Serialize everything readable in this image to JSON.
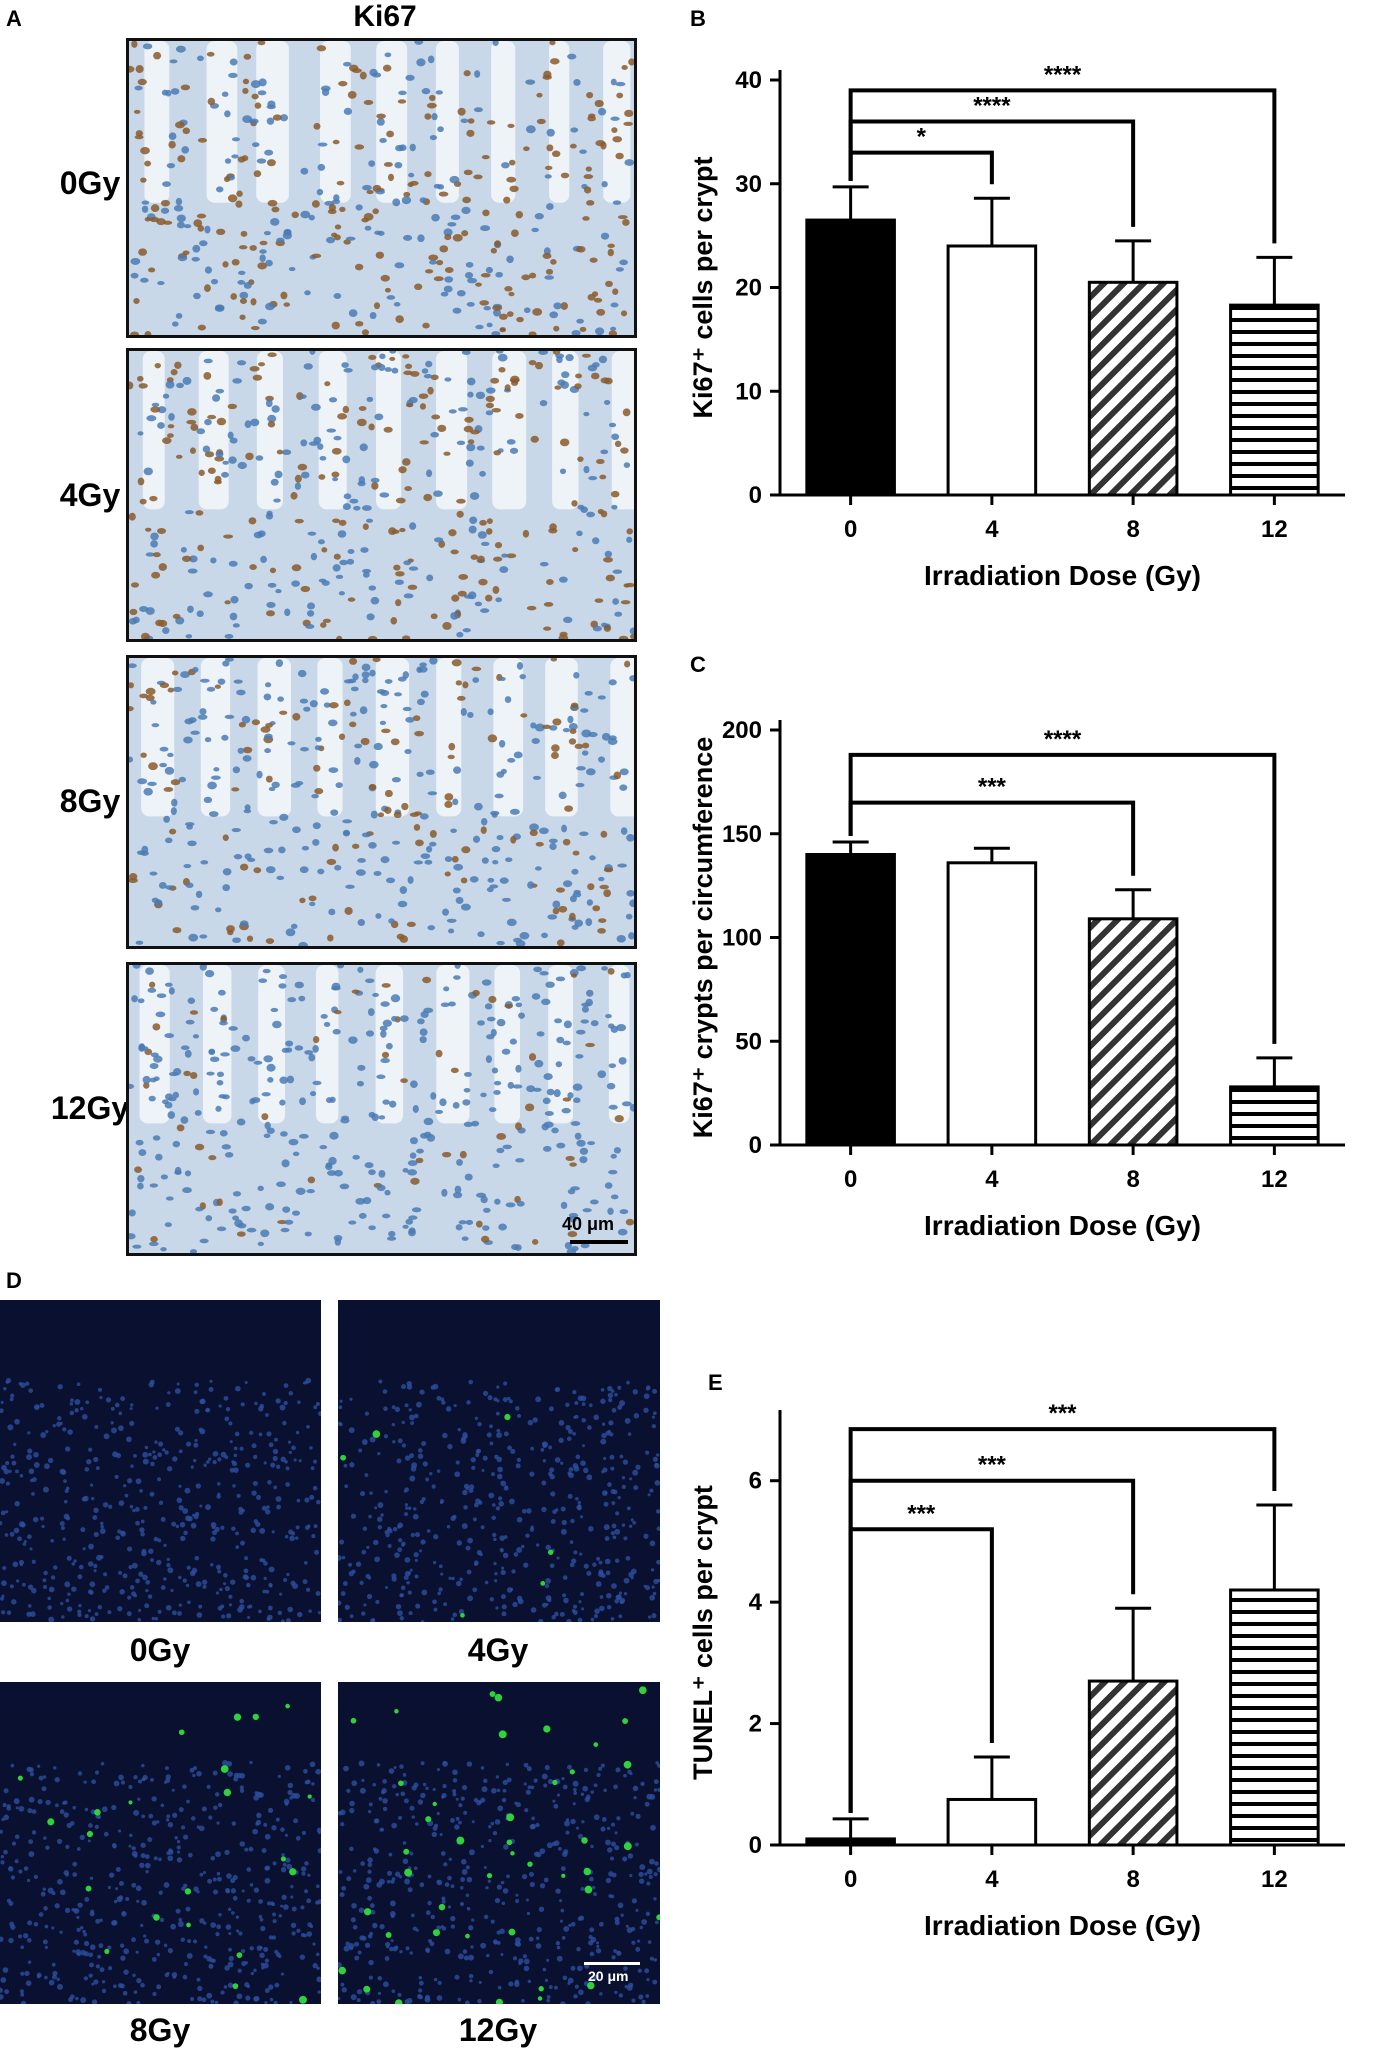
{
  "panels": {
    "a_letter": "A",
    "b_letter": "B",
    "c_letter": "C",
    "d_letter": "D",
    "e_letter": "E"
  },
  "panel_a": {
    "header": "Ki67",
    "rows": [
      "0Gy",
      "4Gy",
      "8Gy",
      "12Gy"
    ],
    "scale_label": "40 μm",
    "colors": {
      "background": "#c9d8e8",
      "nuclei": "#4a7bb5",
      "positive": "#8a5a2b"
    }
  },
  "panel_d": {
    "labels": [
      "0Gy",
      "4Gy",
      "8Gy",
      "12Gy"
    ],
    "scale_label": "20 μm",
    "colors": {
      "background": "#0a1030",
      "nuclei": "#2c4fa0",
      "positive": "#2fd23a"
    }
  },
  "chart_data": [
    {
      "panel": "B",
      "type": "bar",
      "categories": [
        "0",
        "4",
        "8",
        "12"
      ],
      "values": [
        26.5,
        24,
        20.5,
        18.3
      ],
      "errors": [
        3.2,
        4.6,
        4.0,
        4.6
      ],
      "patterns": [
        "solid",
        "white",
        "diagonal",
        "horizontal"
      ],
      "xlabel": "Irradiation Dose (Gy)",
      "ylabel": "Ki67⁺ cells per crypt",
      "ylim": [
        0,
        40
      ],
      "yticks": [
        0,
        10,
        20,
        30,
        40
      ],
      "significance": [
        {
          "from": 0,
          "to": 1,
          "label": "*",
          "y": 33
        },
        {
          "from": 0,
          "to": 2,
          "label": "****",
          "y": 36
        },
        {
          "from": 0,
          "to": 3,
          "label": "****",
          "y": 39
        }
      ]
    },
    {
      "panel": "C",
      "type": "bar",
      "categories": [
        "0",
        "4",
        "8",
        "12"
      ],
      "values": [
        140,
        136,
        109,
        28
      ],
      "errors": [
        6,
        7,
        14,
        14
      ],
      "patterns": [
        "solid",
        "white",
        "diagonal",
        "horizontal"
      ],
      "xlabel": "Irradiation Dose (Gy)",
      "ylabel": "Ki67⁺ crypts per circumference",
      "ylim": [
        0,
        200
      ],
      "yticks": [
        0,
        50,
        100,
        150,
        200
      ],
      "significance": [
        {
          "from": 0,
          "to": 2,
          "label": "***",
          "y": 165
        },
        {
          "from": 0,
          "to": 3,
          "label": "****",
          "y": 188
        }
      ]
    },
    {
      "panel": "E",
      "type": "bar",
      "categories": [
        "0",
        "4",
        "8",
        "12"
      ],
      "values": [
        0.1,
        0.75,
        2.7,
        4.2
      ],
      "errors": [
        0.33,
        0.7,
        1.2,
        1.4
      ],
      "patterns": [
        "solid",
        "white",
        "diagonal",
        "horizontal"
      ],
      "xlabel": "Irradiation Dose (Gy)",
      "ylabel": "TUNEL⁺ cells per crypt",
      "ylim": [
        0,
        7
      ],
      "yticks": [
        0,
        2,
        4,
        6
      ],
      "significance": [
        {
          "from": 0,
          "to": 1,
          "label": "***",
          "y": 5.2
        },
        {
          "from": 0,
          "to": 2,
          "label": "***",
          "y": 6.0
        },
        {
          "from": 0,
          "to": 3,
          "label": "***",
          "y": 6.85
        }
      ]
    }
  ]
}
